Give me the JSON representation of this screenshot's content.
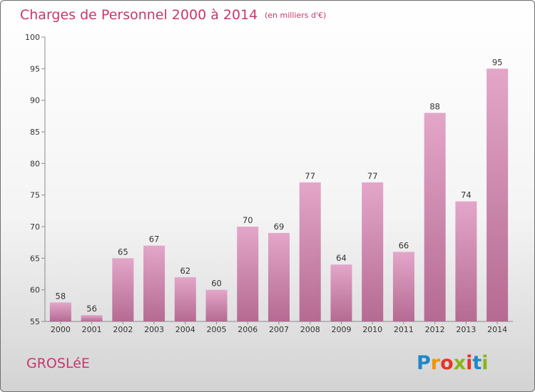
{
  "chart_data": {
    "type": "bar",
    "title": "Charges de Personnel 2000 à 2014",
    "subtitle": "(en milliers d'€)",
    "categories": [
      "2000",
      "2001",
      "2002",
      "2003",
      "2004",
      "2005",
      "2006",
      "2007",
      "2008",
      "2009",
      "2010",
      "2011",
      "2012",
      "2013",
      "2014"
    ],
    "values": [
      58,
      56,
      65,
      67,
      62,
      60,
      70,
      69,
      77,
      64,
      77,
      66,
      88,
      74,
      95
    ],
    "ylim": [
      55,
      100
    ],
    "yticks": [
      55,
      60,
      65,
      70,
      75,
      80,
      85,
      90,
      95,
      100
    ],
    "grid": false,
    "bar_color_top": "#e3a6c9",
    "bar_color_bottom": "#b56a92"
  },
  "commune": "GROSLéE",
  "logo": {
    "letters": [
      "P",
      "r",
      "o",
      "x",
      "i",
      "t",
      "i"
    ],
    "colors": [
      "#1e88c8",
      "#f29400",
      "#e6332a",
      "#8ab31a",
      "#e6332a",
      "#1e88c8",
      "#8ab31a"
    ]
  }
}
